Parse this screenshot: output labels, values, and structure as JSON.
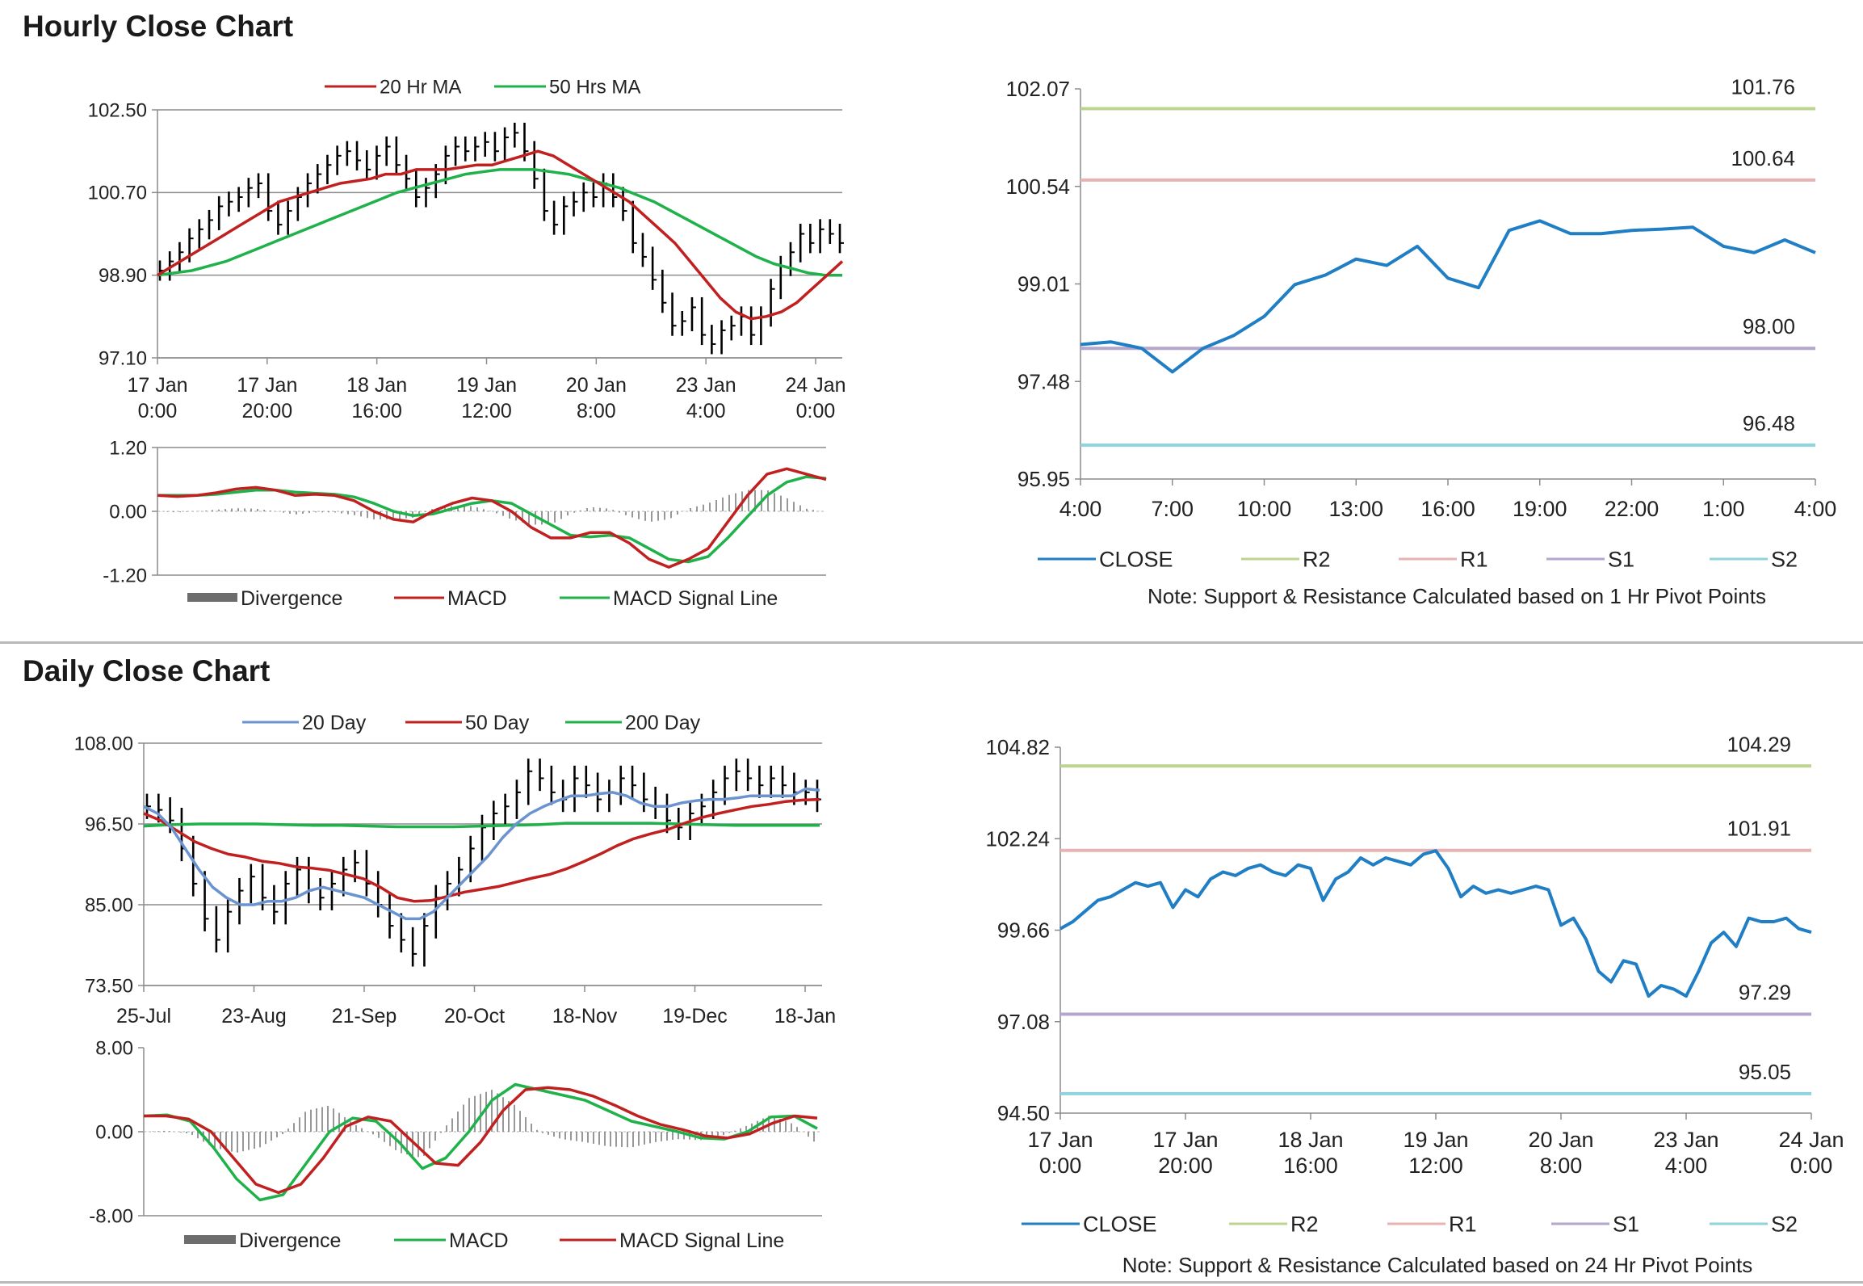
{
  "sections": {
    "hourly_title": "Hourly Close Chart",
    "daily_title": "Daily Close Chart"
  },
  "colors": {
    "ma_red": "#c0201f",
    "ma_green": "#1fb14a",
    "ma_blue": "#6b93cf",
    "close_blue": "#1f7ec4",
    "r2": "#bcd490",
    "r1": "#e8b3b3",
    "s1": "#b4a6cd",
    "s2": "#8fd3dc",
    "grid": "#8c8c8c",
    "divergence": "#6d6d6d"
  },
  "chart_data": [
    {
      "id": "hourly_ma",
      "type": "line",
      "series_kind": "price_bars_with_moving_averages",
      "legend": [
        "20 Hr MA",
        "50 Hrs MA"
      ],
      "yticks": [
        "102.50",
        "100.70",
        "98.90",
        "97.10"
      ],
      "ylim": [
        97.1,
        102.5
      ],
      "xticks": [
        [
          "17 Jan",
          "0:00"
        ],
        [
          "17 Jan",
          "20:00"
        ],
        [
          "18 Jan",
          "16:00"
        ],
        [
          "19 Jan",
          "12:00"
        ],
        [
          "20 Jan",
          "8:00"
        ],
        [
          "23 Jan",
          "4:00"
        ],
        [
          "24 Jan",
          "0:00"
        ]
      ],
      "price_close": [
        99.0,
        99.2,
        99.4,
        99.7,
        99.9,
        100.1,
        100.4,
        100.5,
        100.6,
        100.8,
        100.9,
        100.3,
        100.0,
        100.3,
        100.6,
        100.9,
        101.1,
        101.3,
        101.5,
        101.6,
        101.4,
        101.2,
        101.5,
        101.7,
        101.3,
        101.0,
        100.6,
        100.8,
        101.1,
        101.5,
        101.7,
        101.6,
        101.7,
        101.8,
        101.6,
        101.9,
        102.0,
        101.6,
        101.0,
        100.3,
        100.0,
        100.4,
        100.5,
        100.7,
        100.6,
        100.9,
        100.6,
        100.3,
        99.6,
        99.3,
        98.8,
        98.3,
        97.8,
        97.9,
        98.2,
        97.6,
        97.4,
        97.7,
        97.8,
        98.0,
        97.6,
        98.0,
        98.6,
        99.1,
        99.4,
        99.8,
        99.6,
        99.9,
        99.8,
        99.6
      ],
      "series": [
        {
          "name": "20 Hr MA",
          "values": [
            98.9,
            99.1,
            99.3,
            99.5,
            99.7,
            99.9,
            100.1,
            100.3,
            100.5,
            100.6,
            100.7,
            100.8,
            100.9,
            100.95,
            101.0,
            101.1,
            101.1,
            101.2,
            101.2,
            101.2,
            101.25,
            101.3,
            101.3,
            101.4,
            101.5,
            101.6,
            101.5,
            101.3,
            101.1,
            100.9,
            100.7,
            100.5,
            100.2,
            99.9,
            99.6,
            99.2,
            98.8,
            98.4,
            98.1,
            97.95,
            98.0,
            98.1,
            98.3,
            98.6,
            98.9,
            99.2
          ]
        },
        {
          "name": "50 Hrs MA",
          "values": [
            98.9,
            98.95,
            99.0,
            99.1,
            99.2,
            99.35,
            99.5,
            99.65,
            99.8,
            99.95,
            100.1,
            100.25,
            100.4,
            100.55,
            100.7,
            100.8,
            100.9,
            101.0,
            101.1,
            101.15,
            101.2,
            101.2,
            101.2,
            101.15,
            101.1,
            101.0,
            100.9,
            100.8,
            100.65,
            100.5,
            100.3,
            100.1,
            99.9,
            99.7,
            99.5,
            99.3,
            99.15,
            99.05,
            98.95,
            98.9,
            98.9
          ]
        }
      ]
    },
    {
      "id": "hourly_macd",
      "type": "line",
      "legend": [
        "Divergence",
        "MACD",
        "MACD Signal Line"
      ],
      "yticks": [
        "1.20",
        "0.00",
        "-1.20"
      ],
      "ylim": [
        -1.2,
        1.2
      ],
      "series": [
        {
          "name": "MACD",
          "values": [
            0.3,
            0.28,
            0.3,
            0.35,
            0.42,
            0.45,
            0.4,
            0.3,
            0.32,
            0.3,
            0.2,
            0.0,
            -0.15,
            -0.2,
            0.0,
            0.15,
            0.25,
            0.2,
            0.0,
            -0.3,
            -0.5,
            -0.5,
            -0.4,
            -0.4,
            -0.6,
            -0.9,
            -1.05,
            -0.9,
            -0.7,
            -0.2,
            0.3,
            0.7,
            0.8,
            0.7,
            0.6
          ]
        },
        {
          "name": "MACD Signal Line",
          "values": [
            0.3,
            0.3,
            0.3,
            0.32,
            0.36,
            0.4,
            0.4,
            0.36,
            0.34,
            0.32,
            0.27,
            0.15,
            0.0,
            -0.08,
            -0.05,
            0.05,
            0.15,
            0.2,
            0.15,
            -0.05,
            -0.25,
            -0.45,
            -0.48,
            -0.45,
            -0.5,
            -0.7,
            -0.9,
            -0.95,
            -0.85,
            -0.5,
            -0.1,
            0.3,
            0.55,
            0.65,
            0.62
          ]
        }
      ]
    },
    {
      "id": "hourly_pivot",
      "type": "line",
      "yticks": [
        "102.07",
        "100.54",
        "99.01",
        "97.48",
        "95.95"
      ],
      "ylim": [
        95.95,
        102.07
      ],
      "xticks": [
        "4:00",
        "7:00",
        "10:00",
        "13:00",
        "16:00",
        "19:00",
        "22:00",
        "1:00",
        "4:00"
      ],
      "levels": [
        {
          "name": "R2",
          "value": 101.76,
          "label": "101.76"
        },
        {
          "name": "R1",
          "value": 100.64,
          "label": "100.64"
        },
        {
          "name": "S1",
          "value": 98.0,
          "label": "98.00"
        },
        {
          "name": "S2",
          "value": 96.48,
          "label": "96.48"
        }
      ],
      "series": [
        {
          "name": "CLOSE",
          "values": [
            98.06,
            98.1,
            98.0,
            97.63,
            98.0,
            98.2,
            98.5,
            99.0,
            99.15,
            99.4,
            99.3,
            99.6,
            99.1,
            98.95,
            99.85,
            100.0,
            99.8,
            99.8,
            99.85,
            99.87,
            99.9,
            99.6,
            99.5,
            99.7,
            99.5
          ]
        }
      ],
      "legend": [
        "CLOSE",
        "R2",
        "R1",
        "S1",
        "S2"
      ],
      "note": "Note: Support & Resistance Calculated based on 1 Hr Pivot Points"
    },
    {
      "id": "daily_ma",
      "type": "line",
      "series_kind": "price_bars_with_moving_averages",
      "legend": [
        "20 Day",
        "50 Day",
        "200 Day"
      ],
      "yticks": [
        "108.00",
        "96.50",
        "85.00",
        "73.50"
      ],
      "ylim": [
        73.5,
        108.0
      ],
      "xticks": [
        "25-Jul",
        "23-Aug",
        "21-Sep",
        "20-Oct",
        "18-Nov",
        "19-Dec",
        "18-Jan"
      ],
      "price_close": [
        99,
        98.5,
        97,
        93,
        88,
        83,
        80,
        84,
        87,
        89,
        86,
        84,
        88,
        90,
        87,
        86,
        88,
        90,
        91,
        88,
        85,
        82,
        80,
        78,
        82,
        86,
        88,
        90,
        93,
        96,
        98,
        99,
        101,
        104,
        103,
        101,
        100,
        103,
        102,
        100,
        101,
        103,
        102,
        100,
        99,
        97,
        96,
        98,
        99,
        101,
        103,
        104,
        103,
        102,
        103,
        102,
        101,
        101,
        100
      ],
      "series": [
        {
          "name": "20 Day",
          "values": [
            99,
            98,
            96,
            93,
            90,
            87.5,
            86,
            85,
            85,
            85.5,
            85.5,
            86,
            87,
            87.5,
            87,
            86.5,
            86,
            85,
            84,
            83,
            83,
            84,
            86,
            88,
            90,
            92,
            94.5,
            96.5,
            98,
            99,
            99.8,
            100.5,
            100.5,
            100.8,
            101,
            100.5,
            99.5,
            99,
            99,
            99.5,
            99.8,
            100,
            100,
            100.2,
            100.5,
            100.5,
            100.5,
            100.5,
            101.5,
            101.3
          ]
        },
        {
          "name": "50 Day",
          "values": [
            98,
            97,
            95.5,
            94,
            93,
            92.2,
            91.8,
            91.2,
            90.9,
            90.4,
            90.2,
            89.9,
            89.3,
            88.7,
            87.5,
            86,
            85.5,
            85.6,
            86.2,
            86.8,
            87.2,
            87.6,
            88.2,
            88.8,
            89.3,
            90.1,
            91.1,
            92.2,
            93.4,
            94.4,
            95.1,
            95.7,
            96.6,
            97.4,
            98,
            98.5,
            99,
            99.3,
            99.7,
            99.9,
            100
          ]
        },
        {
          "name": "200 Day",
          "values": [
            96.2,
            96.4,
            96.5,
            96.5,
            96.5,
            96.4,
            96.3,
            96.3,
            96.2,
            96.1,
            96.1,
            96.1,
            96.2,
            96.3,
            96.4,
            96.6,
            96.6,
            96.6,
            96.6,
            96.5,
            96.4,
            96.3,
            96.3,
            96.3,
            96.3
          ]
        }
      ]
    },
    {
      "id": "daily_macd",
      "type": "line",
      "legend": [
        "Divergence",
        "MACD",
        "MACD Signal Line"
      ],
      "yticks": [
        "8.00",
        "0.00",
        "-8.00"
      ],
      "ylim": [
        -8,
        8
      ],
      "series": [
        {
          "name": "MACD",
          "values": [
            1.5,
            1.6,
            1.0,
            -1.5,
            -4.5,
            -6.5,
            -6,
            -3,
            0,
            1.3,
            1,
            -1,
            -3.5,
            -2.5,
            0,
            3,
            4.5,
            4,
            3.5,
            3,
            2,
            1,
            0.5,
            0,
            -0.6,
            -0.7,
            0,
            1.4,
            1.5,
            0.3
          ]
        },
        {
          "name": "MACD Signal Line",
          "values": [
            1.5,
            1.5,
            1.2,
            0,
            -2.5,
            -5,
            -5.8,
            -5,
            -2.5,
            0.5,
            1.4,
            1,
            -1,
            -3,
            -3.2,
            -1,
            2,
            4,
            4.2,
            4,
            3.4,
            2.5,
            1.5,
            0.7,
            0.2,
            -0.4,
            -0.6,
            -0.2,
            0.8,
            1.5,
            1.3
          ]
        }
      ]
    },
    {
      "id": "daily_pivot",
      "type": "line",
      "yticks": [
        "104.82",
        "102.24",
        "99.66",
        "97.08",
        "94.50"
      ],
      "ylim": [
        94.5,
        104.82
      ],
      "xticks": [
        [
          "17 Jan",
          "0:00"
        ],
        [
          "17 Jan",
          "20:00"
        ],
        [
          "18 Jan",
          "16:00"
        ],
        [
          "19 Jan",
          "12:00"
        ],
        [
          "20 Jan",
          "8:00"
        ],
        [
          "23 Jan",
          "4:00"
        ],
        [
          "24 Jan",
          "0:00"
        ]
      ],
      "levels": [
        {
          "name": "R2",
          "value": 104.29,
          "label": "104.29"
        },
        {
          "name": "R1",
          "value": 101.91,
          "label": "101.91"
        },
        {
          "name": "S1",
          "value": 97.29,
          "label": "97.29"
        },
        {
          "name": "S2",
          "value": 95.05,
          "label": "95.05"
        }
      ],
      "series": [
        {
          "name": "CLOSE",
          "values": [
            99.7,
            99.9,
            100.2,
            100.5,
            100.6,
            100.8,
            101.0,
            100.9,
            101.0,
            100.3,
            100.8,
            100.6,
            101.1,
            101.3,
            101.2,
            101.4,
            101.5,
            101.3,
            101.2,
            101.5,
            101.4,
            100.5,
            101.1,
            101.3,
            101.7,
            101.5,
            101.7,
            101.6,
            101.5,
            101.8,
            101.9,
            101.4,
            100.6,
            100.9,
            100.7,
            100.8,
            100.7,
            100.8,
            100.9,
            100.8,
            99.8,
            100.0,
            99.4,
            98.5,
            98.2,
            98.8,
            98.7,
            97.8,
            98.1,
            98.0,
            97.8,
            98.5,
            99.3,
            99.6,
            99.2,
            100.0,
            99.9,
            99.9,
            100.0,
            99.7,
            99.6
          ]
        }
      ],
      "legend": [
        "CLOSE",
        "R2",
        "R1",
        "S1",
        "S2"
      ],
      "note": "Note:  Support & Resistance Calculated based on 24 Hr Pivot Points"
    }
  ]
}
